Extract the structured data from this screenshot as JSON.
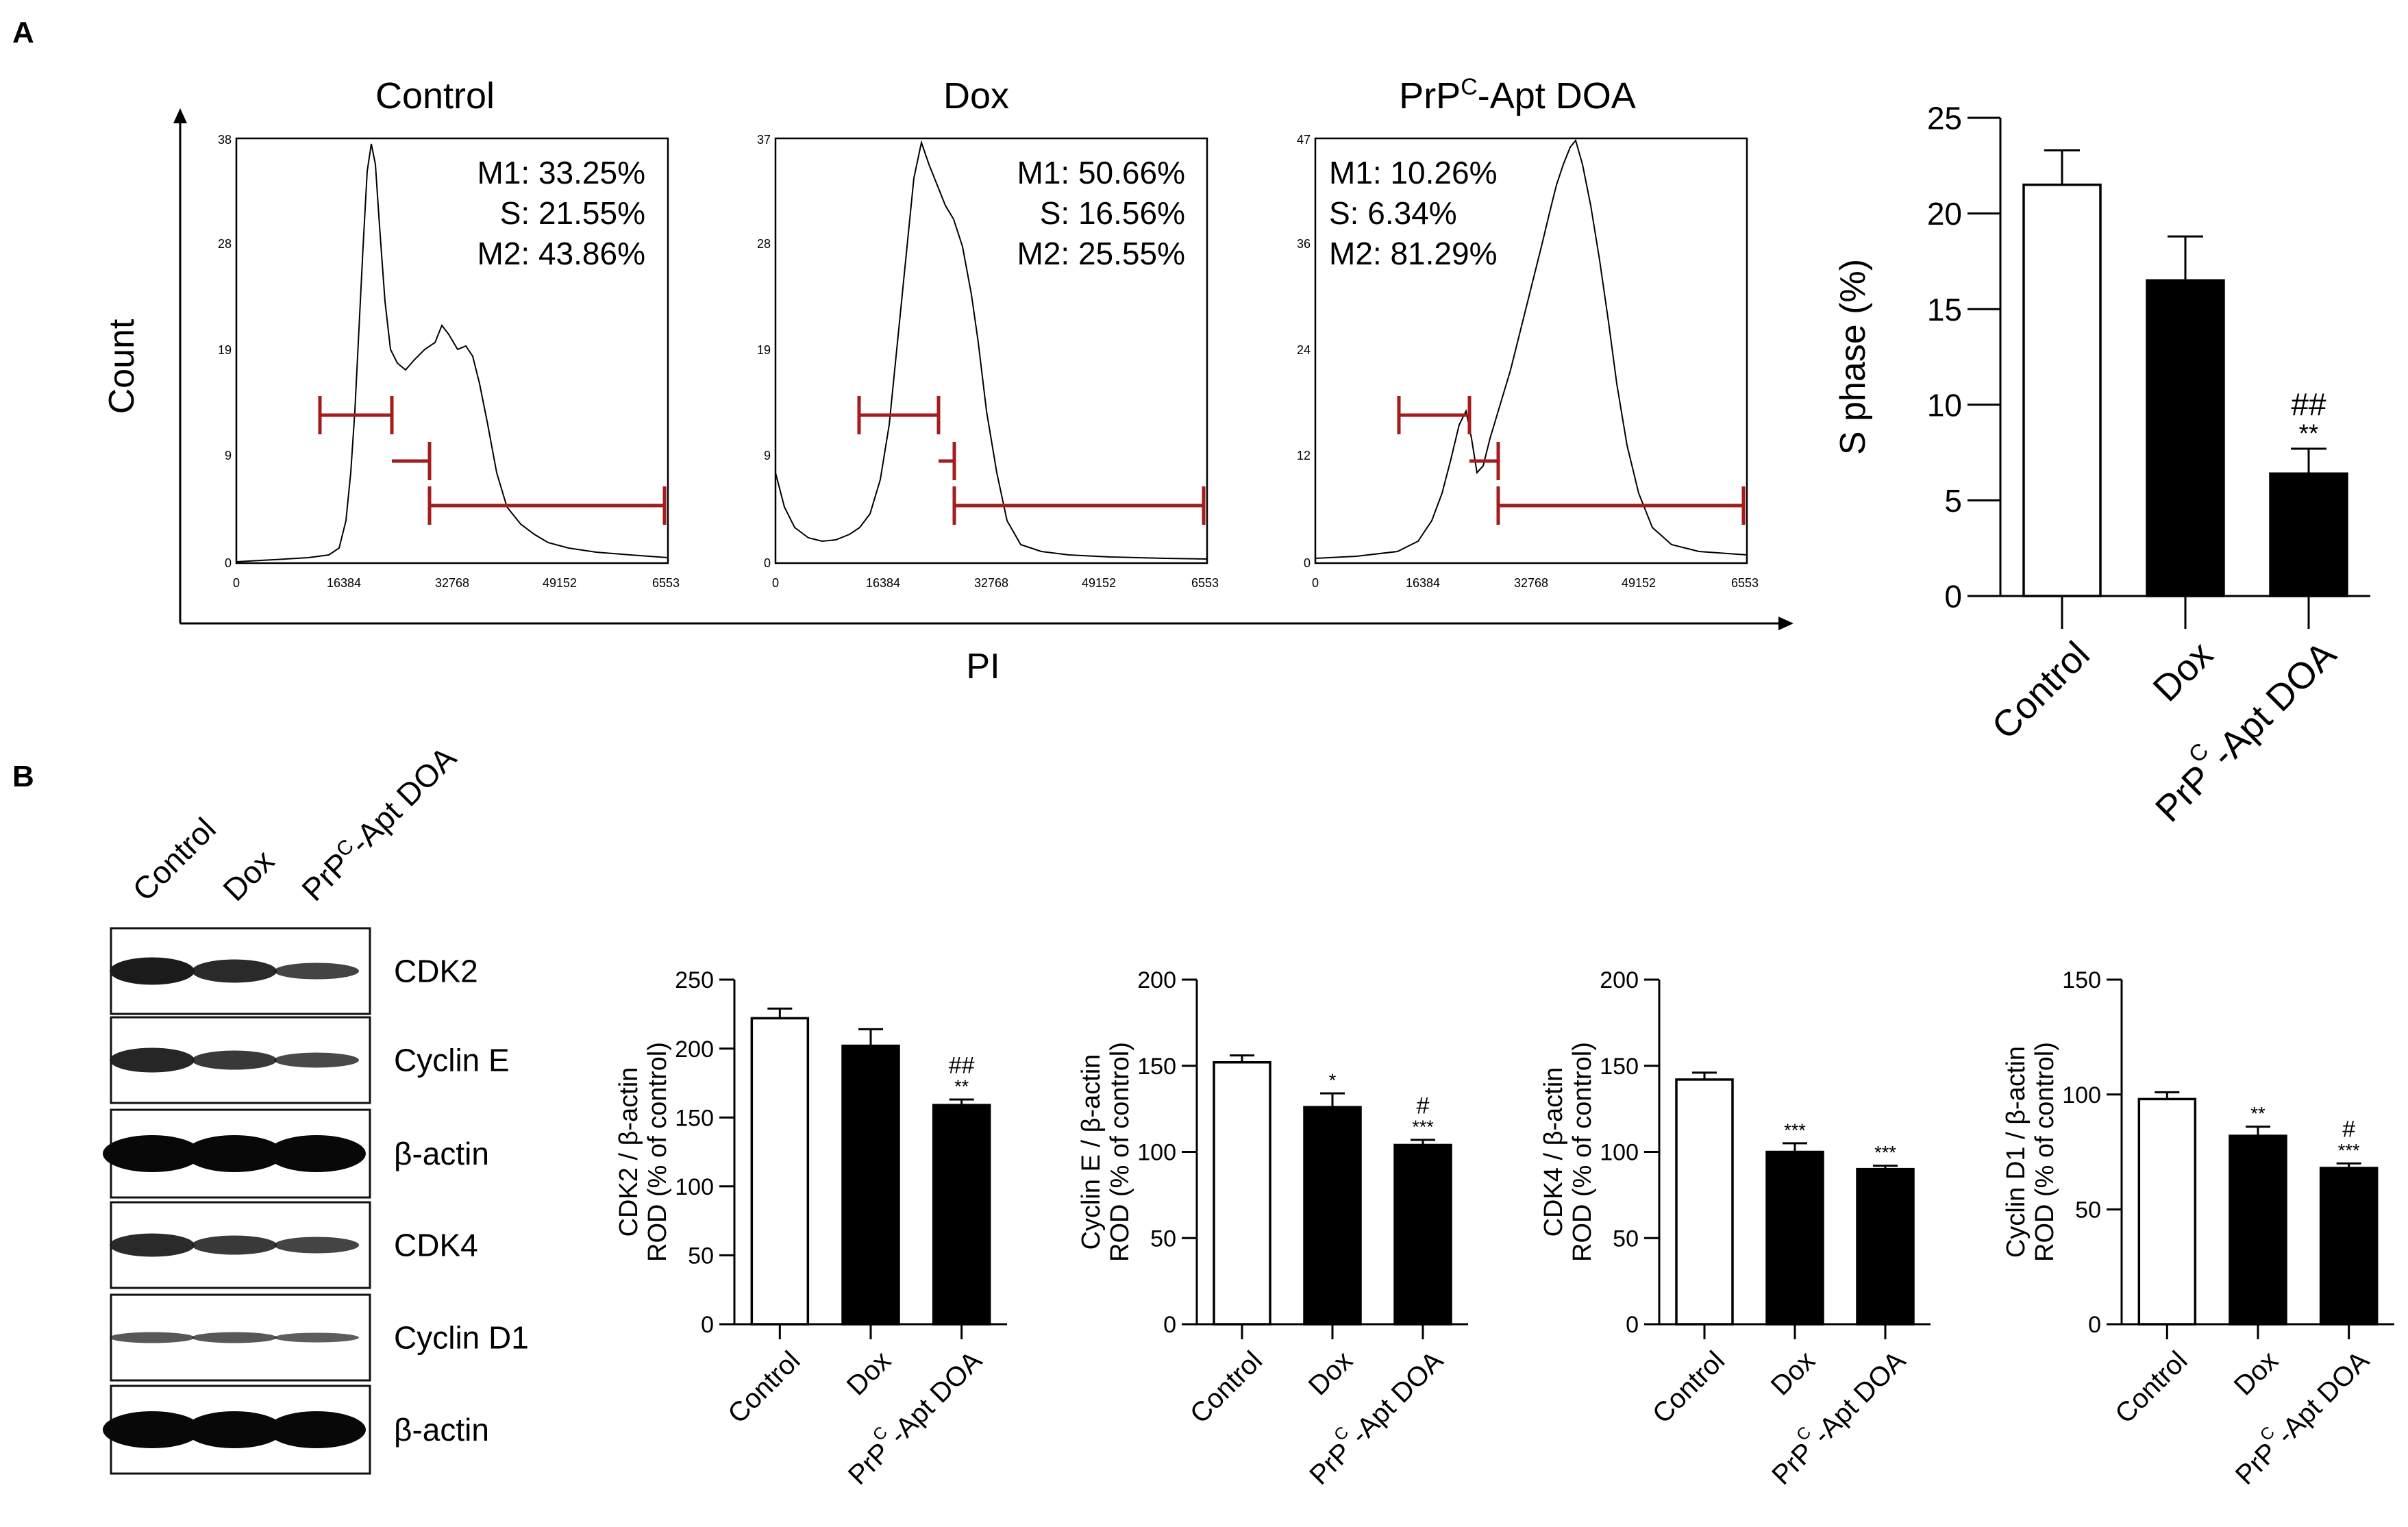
{
  "panels": {
    "a_label": "A",
    "b_label": "B"
  },
  "histograms": {
    "ylabel": "Count",
    "xlabel": "PI",
    "xticks": [
      "0",
      "16384",
      "32768",
      "49152",
      "6553"
    ],
    "items": [
      {
        "title": "Control",
        "yticks": [
          "0",
          "9",
          "19",
          "28",
          "38"
        ],
        "ymax": 38,
        "stats": [
          "M1: 33.25%",
          "S: 21.55%",
          "M2: 43.86%"
        ]
      },
      {
        "title": "Dox",
        "yticks": [
          "0",
          "9",
          "19",
          "28",
          "37"
        ],
        "ymax": 37,
        "stats": [
          "M1: 50.66%",
          "S: 16.56%",
          "M2: 25.55%"
        ]
      },
      {
        "title_main": "PrP",
        "title_sup": "C",
        "title_rest": "-Apt DOA",
        "yticks": [
          "0",
          "12",
          "24",
          "36",
          "47"
        ],
        "ymax": 47,
        "stats": [
          "M1: 10.26%",
          "S: 6.34%",
          "M2: 81.29%"
        ]
      }
    ]
  },
  "blot": {
    "lanes": [
      "Control",
      "Dox"
    ],
    "lane3_main": "PrP",
    "lane3_sup": "C",
    "lane3_rest": "-Apt DOA",
    "rows": [
      "CDK2",
      "Cyclin E",
      "β-actin",
      "CDK4",
      "Cyclin D1",
      "β-actin"
    ]
  },
  "chart_data": [
    {
      "type": "bar",
      "categories": [
        "Control",
        "Dox",
        "PrPC-Apt DOA"
      ],
      "values": [
        21.5,
        16.5,
        6.4
      ],
      "errors": [
        1.8,
        2.3,
        1.3
      ],
      "ylabel": "S phase (%)",
      "ylim": [
        0,
        25
      ],
      "yticks": [
        "0",
        "5",
        "10",
        "15",
        "20",
        "25"
      ],
      "annotations": [
        {
          "index": 2,
          "lines": [
            "##",
            "**"
          ]
        }
      ]
    },
    {
      "type": "bar",
      "categories": [
        "Control",
        "Dox",
        "PrPC-Apt DOA"
      ],
      "values": [
        222,
        202,
        159
      ],
      "errors": [
        7,
        12,
        4
      ],
      "ylabel1": "CDK2 / β-actin",
      "ylabel2": "ROD (% of control)",
      "ylim": [
        0,
        250
      ],
      "yticks": [
        "0",
        "50",
        "100",
        "150",
        "200",
        "250"
      ],
      "annotations": [
        {
          "index": 2,
          "lines": [
            "##",
            "**"
          ]
        }
      ]
    },
    {
      "type": "bar",
      "categories": [
        "Control",
        "Dox",
        "PrPC-Apt DOA"
      ],
      "values": [
        152,
        126,
        104
      ],
      "errors": [
        4,
        8,
        3
      ],
      "ylabel1": "Cyclin E / β-actin",
      "ylabel2": "ROD (% of control)",
      "ylim": [
        0,
        200
      ],
      "yticks": [
        "0",
        "50",
        "100",
        "150",
        "200"
      ],
      "annotations": [
        {
          "index": 1,
          "lines": [
            "*"
          ]
        },
        {
          "index": 2,
          "lines": [
            "#",
            "***"
          ]
        }
      ]
    },
    {
      "type": "bar",
      "categories": [
        "Control",
        "Dox",
        "PrPC-Apt DOA"
      ],
      "values": [
        142,
        100,
        90
      ],
      "errors": [
        4,
        5,
        2
      ],
      "ylabel1": "CDK4 / β-actin",
      "ylabel2": "ROD (% of control)",
      "ylim": [
        0,
        200
      ],
      "yticks": [
        "0",
        "50",
        "100",
        "150",
        "200"
      ],
      "annotations": [
        {
          "index": 1,
          "lines": [
            "***"
          ]
        },
        {
          "index": 2,
          "lines": [
            "***"
          ]
        }
      ]
    },
    {
      "type": "bar",
      "categories": [
        "Control",
        "Dox",
        "PrPC-Apt DOA"
      ],
      "values": [
        98,
        82,
        68
      ],
      "errors": [
        3,
        4,
        2
      ],
      "ylabel1": "Cyclin D1 / β-actin",
      "ylabel2": "ROD (% of control)",
      "ylim": [
        0,
        150
      ],
      "yticks": [
        "0",
        "50",
        "100",
        "150"
      ],
      "annotations": [
        {
          "index": 1,
          "lines": [
            "**"
          ]
        },
        {
          "index": 2,
          "lines": [
            "#",
            "***"
          ]
        }
      ]
    }
  ]
}
